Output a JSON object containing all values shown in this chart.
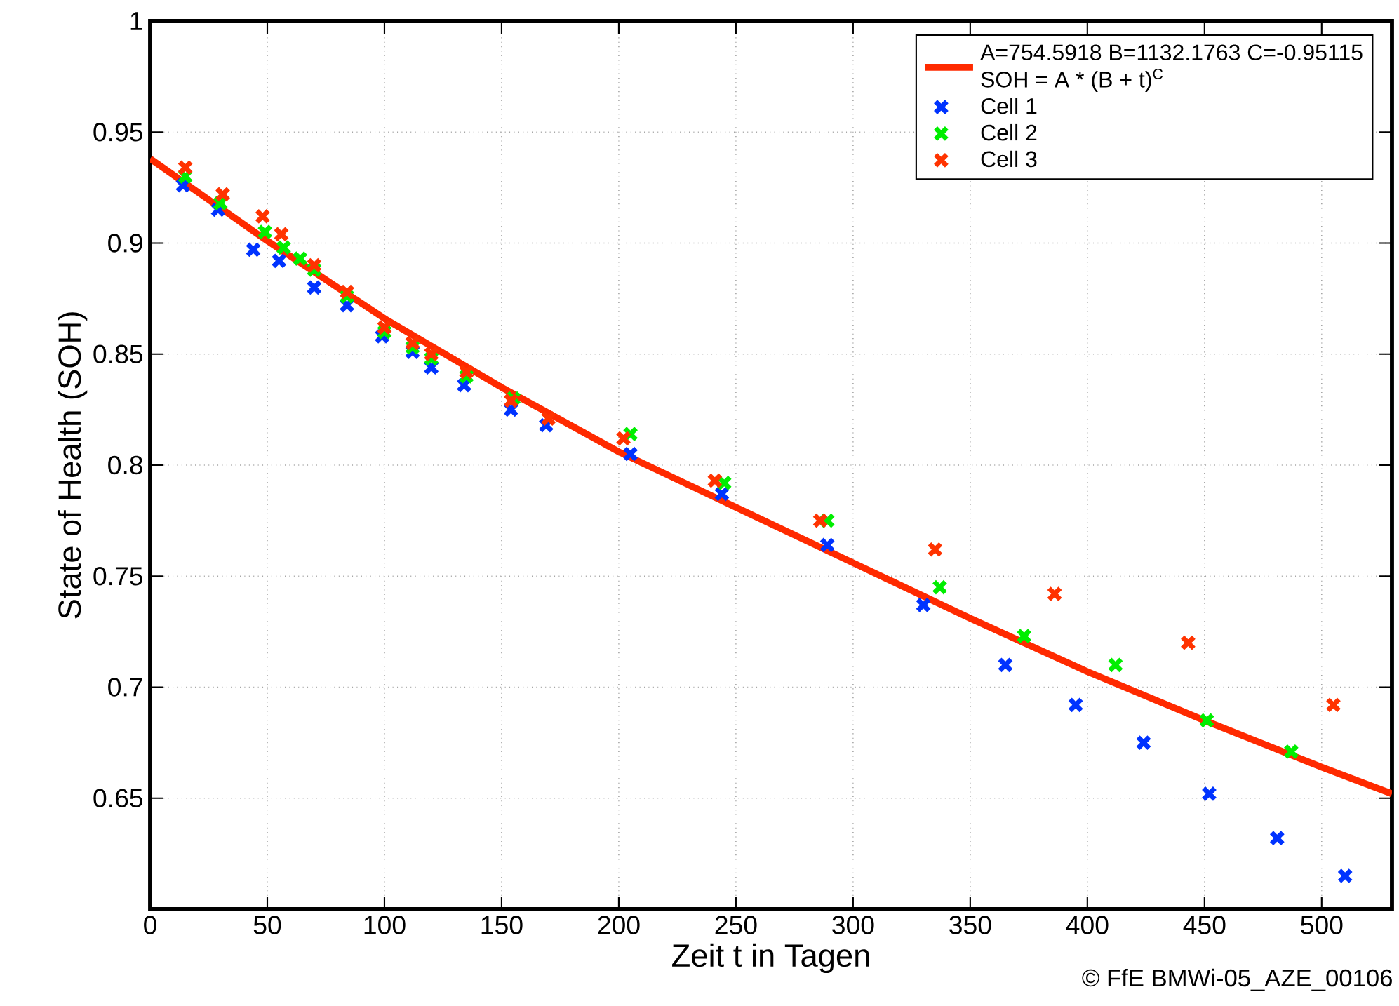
{
  "chart_data": {
    "type": "scatter",
    "xlabel": "Zeit t in Tagen",
    "ylabel": "State of Health (SOH)",
    "xlim": [
      0,
      530
    ],
    "ylim": [
      0.6,
      1
    ],
    "xticks": [
      0,
      50,
      100,
      150,
      200,
      250,
      300,
      350,
      400,
      450,
      500
    ],
    "yticks": [
      {
        "value": 0.65,
        "label": "0.65"
      },
      {
        "value": 0.7,
        "label": "0.7"
      },
      {
        "value": 0.75,
        "label": "0.75"
      },
      {
        "value": 0.8,
        "label": "0.8"
      },
      {
        "value": 0.85,
        "label": "0.85"
      },
      {
        "value": 0.9,
        "label": "0.9"
      },
      {
        "value": 0.95,
        "label": "0.95"
      },
      {
        "value": 1,
        "label": "1"
      }
    ],
    "grid": true,
    "legend": "top right",
    "marker": "cross",
    "annotations": [
      "SOH = A * (B + t)$^{C}$",
      "© FfE BMWi-05_AZE_00106"
    ],
    "series": [
      {
        "name": "A=754.5918 B=1132.1763 C=-0.95115",
        "type": "line",
        "marker": "none",
        "color": "#ff2a00",
        "x": [
          0,
          50,
          100,
          150,
          200,
          250,
          300,
          350,
          400,
          450,
          500,
          530
        ],
        "values": [
          0.938,
          0.901,
          0.866,
          0.835,
          0.806,
          0.781,
          0.756,
          0.731,
          0.707,
          0.685,
          0.664,
          0.652
        ]
      },
      {
        "name": "Cell 1",
        "color": "#0033ff",
        "x": [
          14,
          29,
          44,
          55,
          70,
          84,
          99,
          112,
          120,
          134,
          154,
          169,
          205,
          244,
          289,
          330,
          365,
          395,
          424,
          452,
          481,
          510
        ],
        "values": [
          0.926,
          0.915,
          0.897,
          0.892,
          0.88,
          0.872,
          0.858,
          0.851,
          0.844,
          0.836,
          0.825,
          0.818,
          0.805,
          0.787,
          0.764,
          0.737,
          0.71,
          0.692,
          0.675,
          0.652,
          0.632,
          0.615
        ]
      },
      {
        "name": "Cell 2",
        "color": "#00ee00",
        "x": [
          15,
          30,
          49,
          57,
          64,
          70,
          84,
          100,
          112,
          120,
          135,
          155,
          205,
          245,
          289,
          337,
          373,
          412,
          451,
          487
        ],
        "values": [
          0.93,
          0.918,
          0.905,
          0.898,
          0.893,
          0.888,
          0.876,
          0.86,
          0.853,
          0.848,
          0.84,
          0.83,
          0.814,
          0.792,
          0.775,
          0.745,
          0.723,
          0.71,
          0.685,
          0.671
        ]
      },
      {
        "name": "Cell 3",
        "color": "#ff3300",
        "x": [
          15,
          31,
          48,
          56,
          70,
          84,
          100,
          112,
          120,
          135,
          154,
          170,
          202,
          241,
          286,
          335,
          386,
          443,
          505
        ],
        "values": [
          0.934,
          0.922,
          0.912,
          0.904,
          0.89,
          0.878,
          0.862,
          0.855,
          0.85,
          0.842,
          0.829,
          0.821,
          0.812,
          0.793,
          0.775,
          0.762,
          0.742,
          0.72,
          0.692
        ]
      }
    ]
  }
}
